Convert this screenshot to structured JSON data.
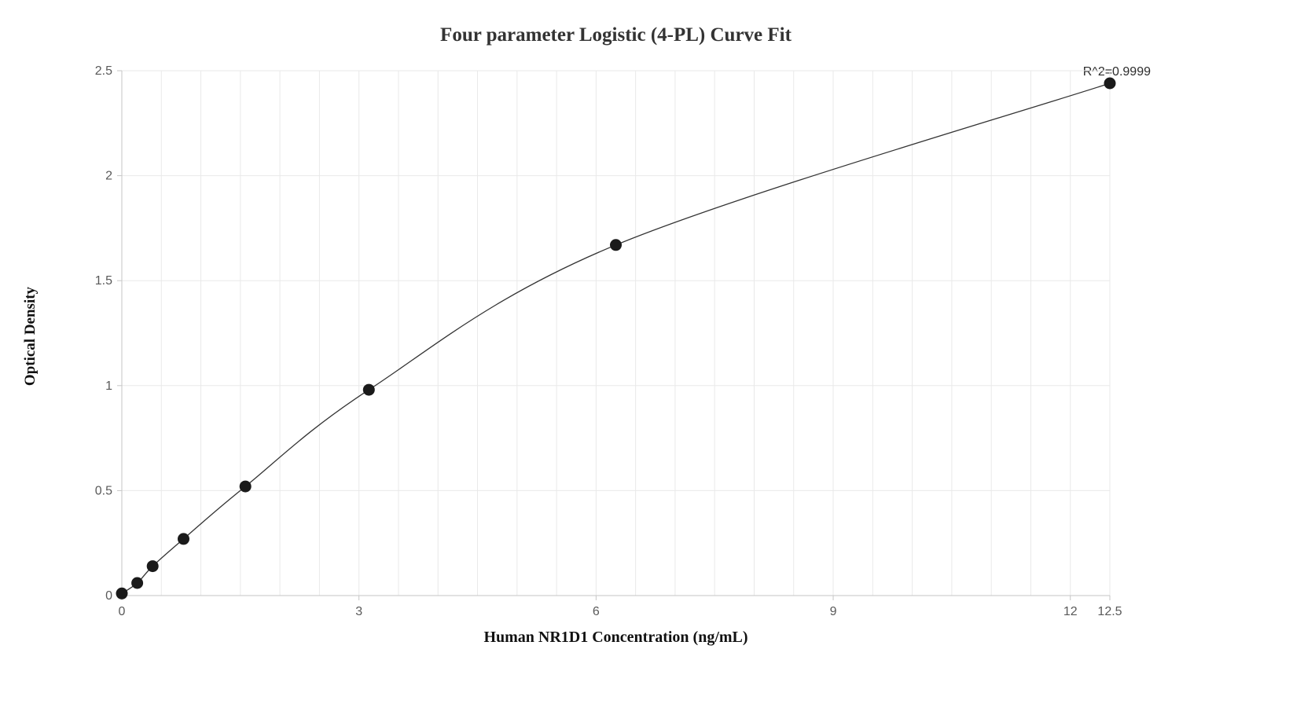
{
  "chart_data": {
    "type": "scatter",
    "subtype": "scatter-with-fit-line",
    "title": "Four parameter Logistic (4-PL) Curve Fit",
    "xlabel": "Human NR1D1 Concentration (ng/mL)",
    "ylabel": "Optical Density",
    "annotation": "R^2=0.9999",
    "x": [
      0,
      0.195,
      0.39,
      0.781,
      1.563,
      3.125,
      6.25,
      12.5
    ],
    "y": [
      0.01,
      0.06,
      0.14,
      0.27,
      0.52,
      0.98,
      1.67,
      2.44
    ],
    "xlim": [
      0,
      12.5
    ],
    "ylim": [
      0,
      2.5
    ],
    "x_ticks": [
      0,
      3,
      6,
      9,
      12,
      12.5
    ],
    "y_ticks": [
      0,
      0.5,
      1,
      1.5,
      2,
      2.5
    ],
    "x_grid_step": 0.5,
    "y_grid_step": 0.5,
    "grid": true,
    "legend": "none",
    "colors": {
      "point": "#1a1a1a",
      "line": "#333333",
      "grid": "#e9e9e9",
      "axis": "#c6c6c6",
      "tick_text": "#595959",
      "title_text": "#333333",
      "label_text": "#111111",
      "annotation_text": "#2b2b2b",
      "background": "#ffffff"
    }
  }
}
